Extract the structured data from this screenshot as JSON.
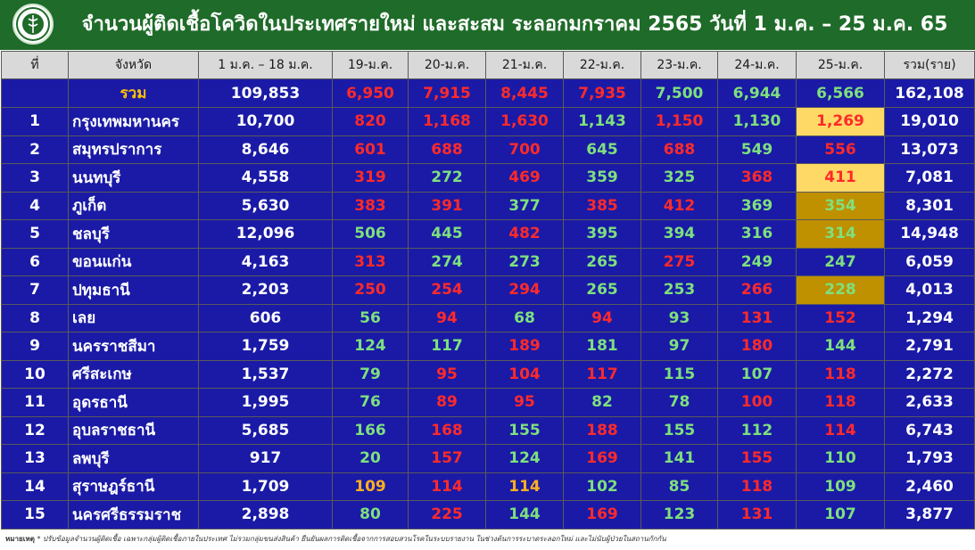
{
  "header": {
    "title": "จำนวนผู้ติดเชื้อโควิดในประเทศรายใหม่ และสะสม ระลอกมกราคม 2565 วันที่ 1 ม.ค. – 25 ม.ค. 65",
    "logo_icon": "ministry-of-public-health-logo"
  },
  "table": {
    "columns": [
      "ที่",
      "จังหวัด",
      "1 ม.ค. – 18 ม.ค.",
      "19-ม.ค.",
      "20-ม.ค.",
      "21-ม.ค.",
      "22-ม.ค.",
      "23-ม.ค.",
      "24-ม.ค.",
      "25-ม.ค.",
      "รวม(ราย)"
    ],
    "total": {
      "label": "รวม",
      "values": [
        "109,853",
        "6,950",
        "7,915",
        "8,445",
        "7,935",
        "7,500",
        "6,944",
        "6,566",
        "162,108"
      ],
      "colors": [
        "white",
        "red",
        "red",
        "red",
        "red",
        "green",
        "green",
        "green",
        "white"
      ]
    },
    "rows": [
      {
        "no": "1",
        "province": "กรุงเทพมหานคร",
        "values": [
          "10,700",
          "820",
          "1,168",
          "1,630",
          "1,143",
          "1,150",
          "1,130",
          "1,269",
          "19,010"
        ],
        "colors": [
          "white",
          "red",
          "red",
          "red",
          "green",
          "red",
          "green",
          "red",
          "white"
        ],
        "highlight": "yellow"
      },
      {
        "no": "2",
        "province": "สมุทรปราการ",
        "values": [
          "8,646",
          "601",
          "688",
          "700",
          "645",
          "688",
          "549",
          "556",
          "13,073"
        ],
        "colors": [
          "white",
          "red",
          "red",
          "red",
          "green",
          "red",
          "green",
          "red",
          "white"
        ],
        "highlight": ""
      },
      {
        "no": "3",
        "province": "นนทบุรี",
        "values": [
          "4,558",
          "319",
          "272",
          "469",
          "359",
          "325",
          "368",
          "411",
          "7,081"
        ],
        "colors": [
          "white",
          "red",
          "green",
          "red",
          "green",
          "green",
          "red",
          "red",
          "white"
        ],
        "highlight": "yellow"
      },
      {
        "no": "4",
        "province": "ภูเก็ต",
        "values": [
          "5,630",
          "383",
          "391",
          "377",
          "385",
          "412",
          "369",
          "354",
          "8,301"
        ],
        "colors": [
          "white",
          "red",
          "red",
          "green",
          "red",
          "red",
          "green",
          "green",
          "white"
        ],
        "highlight": "gold"
      },
      {
        "no": "5",
        "province": "ชลบุรี",
        "values": [
          "12,096",
          "506",
          "445",
          "482",
          "395",
          "394",
          "316",
          "314",
          "14,948"
        ],
        "colors": [
          "white",
          "green",
          "green",
          "red",
          "green",
          "green",
          "green",
          "green",
          "white"
        ],
        "highlight": "gold"
      },
      {
        "no": "6",
        "province": "ขอนแก่น",
        "values": [
          "4,163",
          "313",
          "274",
          "273",
          "265",
          "275",
          "249",
          "247",
          "6,059"
        ],
        "colors": [
          "white",
          "red",
          "green",
          "green",
          "green",
          "red",
          "green",
          "green",
          "white"
        ],
        "highlight": ""
      },
      {
        "no": "7",
        "province": "ปทุมธานี",
        "values": [
          "2,203",
          "250",
          "254",
          "294",
          "265",
          "253",
          "266",
          "228",
          "4,013"
        ],
        "colors": [
          "white",
          "red",
          "red",
          "red",
          "green",
          "green",
          "red",
          "green",
          "white"
        ],
        "highlight": "gold"
      },
      {
        "no": "8",
        "province": "เลย",
        "values": [
          "606",
          "56",
          "94",
          "68",
          "94",
          "93",
          "131",
          "152",
          "1,294"
        ],
        "colors": [
          "white",
          "green",
          "red",
          "green",
          "red",
          "green",
          "red",
          "red",
          "white"
        ],
        "highlight": ""
      },
      {
        "no": "9",
        "province": "นครราชสีมา",
        "values": [
          "1,759",
          "124",
          "117",
          "189",
          "181",
          "97",
          "180",
          "144",
          "2,791"
        ],
        "colors": [
          "white",
          "green",
          "green",
          "red",
          "green",
          "green",
          "red",
          "green",
          "white"
        ],
        "highlight": ""
      },
      {
        "no": "10",
        "province": "ศรีสะเกษ",
        "values": [
          "1,537",
          "79",
          "95",
          "104",
          "117",
          "115",
          "107",
          "118",
          "2,272"
        ],
        "colors": [
          "white",
          "green",
          "red",
          "red",
          "red",
          "green",
          "green",
          "red",
          "white"
        ],
        "highlight": ""
      },
      {
        "no": "11",
        "province": "อุดรธานี",
        "values": [
          "1,995",
          "76",
          "89",
          "95",
          "82",
          "78",
          "100",
          "118",
          "2,633"
        ],
        "colors": [
          "white",
          "green",
          "red",
          "red",
          "green",
          "green",
          "red",
          "red",
          "white"
        ],
        "highlight": ""
      },
      {
        "no": "12",
        "province": "อุบลราชธานี",
        "values": [
          "5,685",
          "166",
          "168",
          "155",
          "188",
          "155",
          "112",
          "114",
          "6,743"
        ],
        "colors": [
          "white",
          "green",
          "red",
          "green",
          "red",
          "green",
          "green",
          "red",
          "white"
        ],
        "highlight": ""
      },
      {
        "no": "13",
        "province": "ลพบุรี",
        "values": [
          "917",
          "20",
          "157",
          "124",
          "169",
          "141",
          "155",
          "110",
          "1,793"
        ],
        "colors": [
          "white",
          "green",
          "red",
          "green",
          "red",
          "green",
          "red",
          "green",
          "white"
        ],
        "highlight": ""
      },
      {
        "no": "14",
        "province": "สุราษฎร์ธานี",
        "values": [
          "1,709",
          "109",
          "114",
          "114",
          "102",
          "85",
          "118",
          "109",
          "2,460"
        ],
        "colors": [
          "white",
          "orange",
          "red",
          "orange",
          "green",
          "green",
          "red",
          "green",
          "white"
        ],
        "highlight": ""
      },
      {
        "no": "15",
        "province": "นครศรีธรรมราช",
        "values": [
          "2,898",
          "80",
          "225",
          "144",
          "169",
          "123",
          "131",
          "107",
          "3,877"
        ],
        "colors": [
          "white",
          "green",
          "red",
          "green",
          "red",
          "green",
          "red",
          "green",
          "white"
        ],
        "highlight": ""
      }
    ]
  },
  "footnote": {
    "label": "หมายเหตุ",
    "text": "* ปรับข้อมูลจำนวนผู้ติดเชื้อ เฉพาะกลุ่มผู้ติดเชื้อภายในประเทศ ไม่รวมกลุ่มขนส่งสินค้า ยืนยันผลการติดเชื้อจากการสอบสวนโรคในระบบรายงาน ในช่วงต้นการระบาดระลอกใหม่ และไม่นับผู้ป่วยในสถานกักกัน"
  },
  "colors": {
    "header_bg": "#1f6b29",
    "table_bg": "#1a1aa6",
    "red": "#ff2a2a",
    "green": "#7ee07e",
    "orange": "#ffb020",
    "highlight_yellow": "#ffd966",
    "highlight_gold": "#bf9000"
  }
}
